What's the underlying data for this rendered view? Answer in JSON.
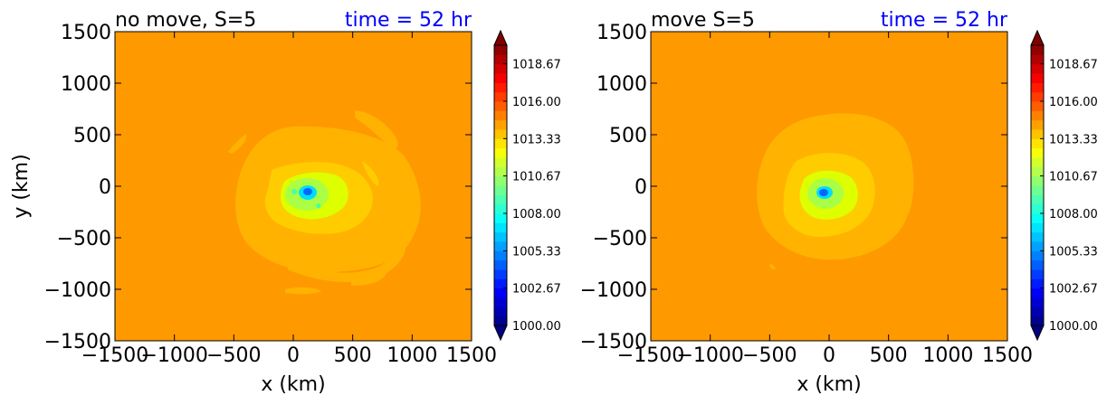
{
  "chart_data": [
    {
      "type": "heatmap",
      "title": "no move, S=5",
      "time_label": "time = 52 hr",
      "xlabel": "x (km)",
      "ylabel": "y (km)",
      "xlim": [
        -1500,
        1500
      ],
      "ylim": [
        -1500,
        1500
      ],
      "xticks": [
        -1500,
        -1000,
        -500,
        0,
        500,
        1000,
        1500
      ],
      "yticks": [
        -1500,
        -1000,
        -500,
        0,
        500,
        1000,
        1500
      ],
      "xtick_labels": [
        "−1500",
        "−1000",
        "−500",
        "0",
        "500",
        "1000",
        "1500"
      ],
      "ytick_labels": [
        "−1500",
        "−1000",
        "−500",
        "0",
        "500",
        "1000",
        "1500"
      ],
      "center_km": [
        110,
        -40
      ],
      "min_pressure": 1007.0,
      "background_pressure": 1016.0
    },
    {
      "type": "heatmap",
      "title": "move S=5",
      "time_label": "time = 52 hr",
      "xlabel": "x (km)",
      "ylabel": "",
      "xlim": [
        -1500,
        1500
      ],
      "ylim": [
        -1500,
        1500
      ],
      "xticks": [
        -1500,
        -1000,
        -500,
        0,
        500,
        1000,
        1500
      ],
      "yticks": [
        -1500,
        -1000,
        -500,
        0,
        500,
        1000,
        1500
      ],
      "xtick_labels": [
        "−1500",
        "−1000",
        "−500",
        "0",
        "500",
        "1000",
        "1500"
      ],
      "ytick_labels": [
        "−1500",
        "−1000",
        "−500",
        "0",
        "500",
        "1000",
        "1500"
      ],
      "center_km": [
        -50,
        -70
      ],
      "min_pressure": 1007.0,
      "background_pressure": 1016.0
    }
  ],
  "colorbar": {
    "min": 1000.0,
    "max": 1020.0,
    "levels": 30,
    "extend": "both",
    "tick_values": [
      1000.0,
      1002.67,
      1005.33,
      1008.0,
      1010.67,
      1013.33,
      1016.0,
      1018.67
    ],
    "tick_labels": [
      "1000.00",
      "1002.67",
      "1005.33",
      "1008.00",
      "1010.67",
      "1013.33",
      "1016.00",
      "1018.67"
    ],
    "colormap": "jet"
  },
  "colors": {
    "time_label": "#0000ff",
    "background_fill": "#ff9900"
  }
}
